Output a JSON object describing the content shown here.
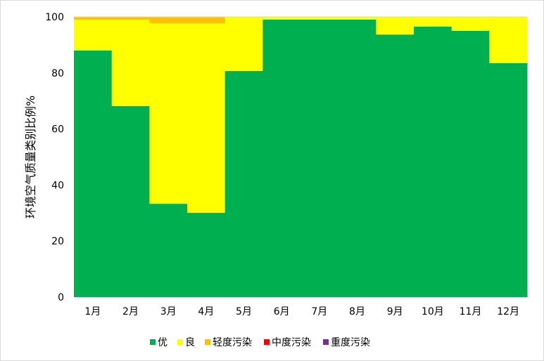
{
  "chart_data": {
    "type": "bar",
    "stacked": true,
    "title": "",
    "xlabel": "",
    "ylabel": "环境空气质量类别比例%",
    "ylim": [
      0,
      100
    ],
    "yticks": [
      0,
      20,
      40,
      60,
      80,
      100
    ],
    "categories": [
      "1月",
      "2月",
      "3月",
      "4月",
      "5月",
      "6月",
      "7月",
      "8月",
      "9月",
      "10月",
      "11月",
      "12月"
    ],
    "series": [
      {
        "name": "优",
        "color": "#00B050",
        "values": [
          88.0,
          68.2,
          33.3,
          30.1,
          80.7,
          99.0,
          99.0,
          99.0,
          93.7,
          96.5,
          95.0,
          83.5
        ]
      },
      {
        "name": "良",
        "color": "#FFFF00",
        "values": [
          11.0,
          30.8,
          64.4,
          67.6,
          19.3,
          1.0,
          1.0,
          1.0,
          6.3,
          3.5,
          5.0,
          16.5
        ]
      },
      {
        "name": "轻度污染",
        "color": "#FFC000",
        "values": [
          1.0,
          1.0,
          2.3,
          2.3,
          0,
          0,
          0,
          0,
          0,
          0,
          0,
          0
        ]
      },
      {
        "name": "中度污染",
        "color": "#FF0000",
        "values": [
          0,
          0,
          0,
          0,
          0,
          0,
          0,
          0,
          0,
          0,
          0,
          0
        ]
      },
      {
        "name": "重度污染",
        "color": "#7030A0",
        "values": [
          0,
          0,
          0,
          0,
          0,
          0,
          0,
          0,
          0,
          0,
          0,
          0
        ]
      }
    ],
    "grid": false,
    "legend_position": "bottom"
  }
}
